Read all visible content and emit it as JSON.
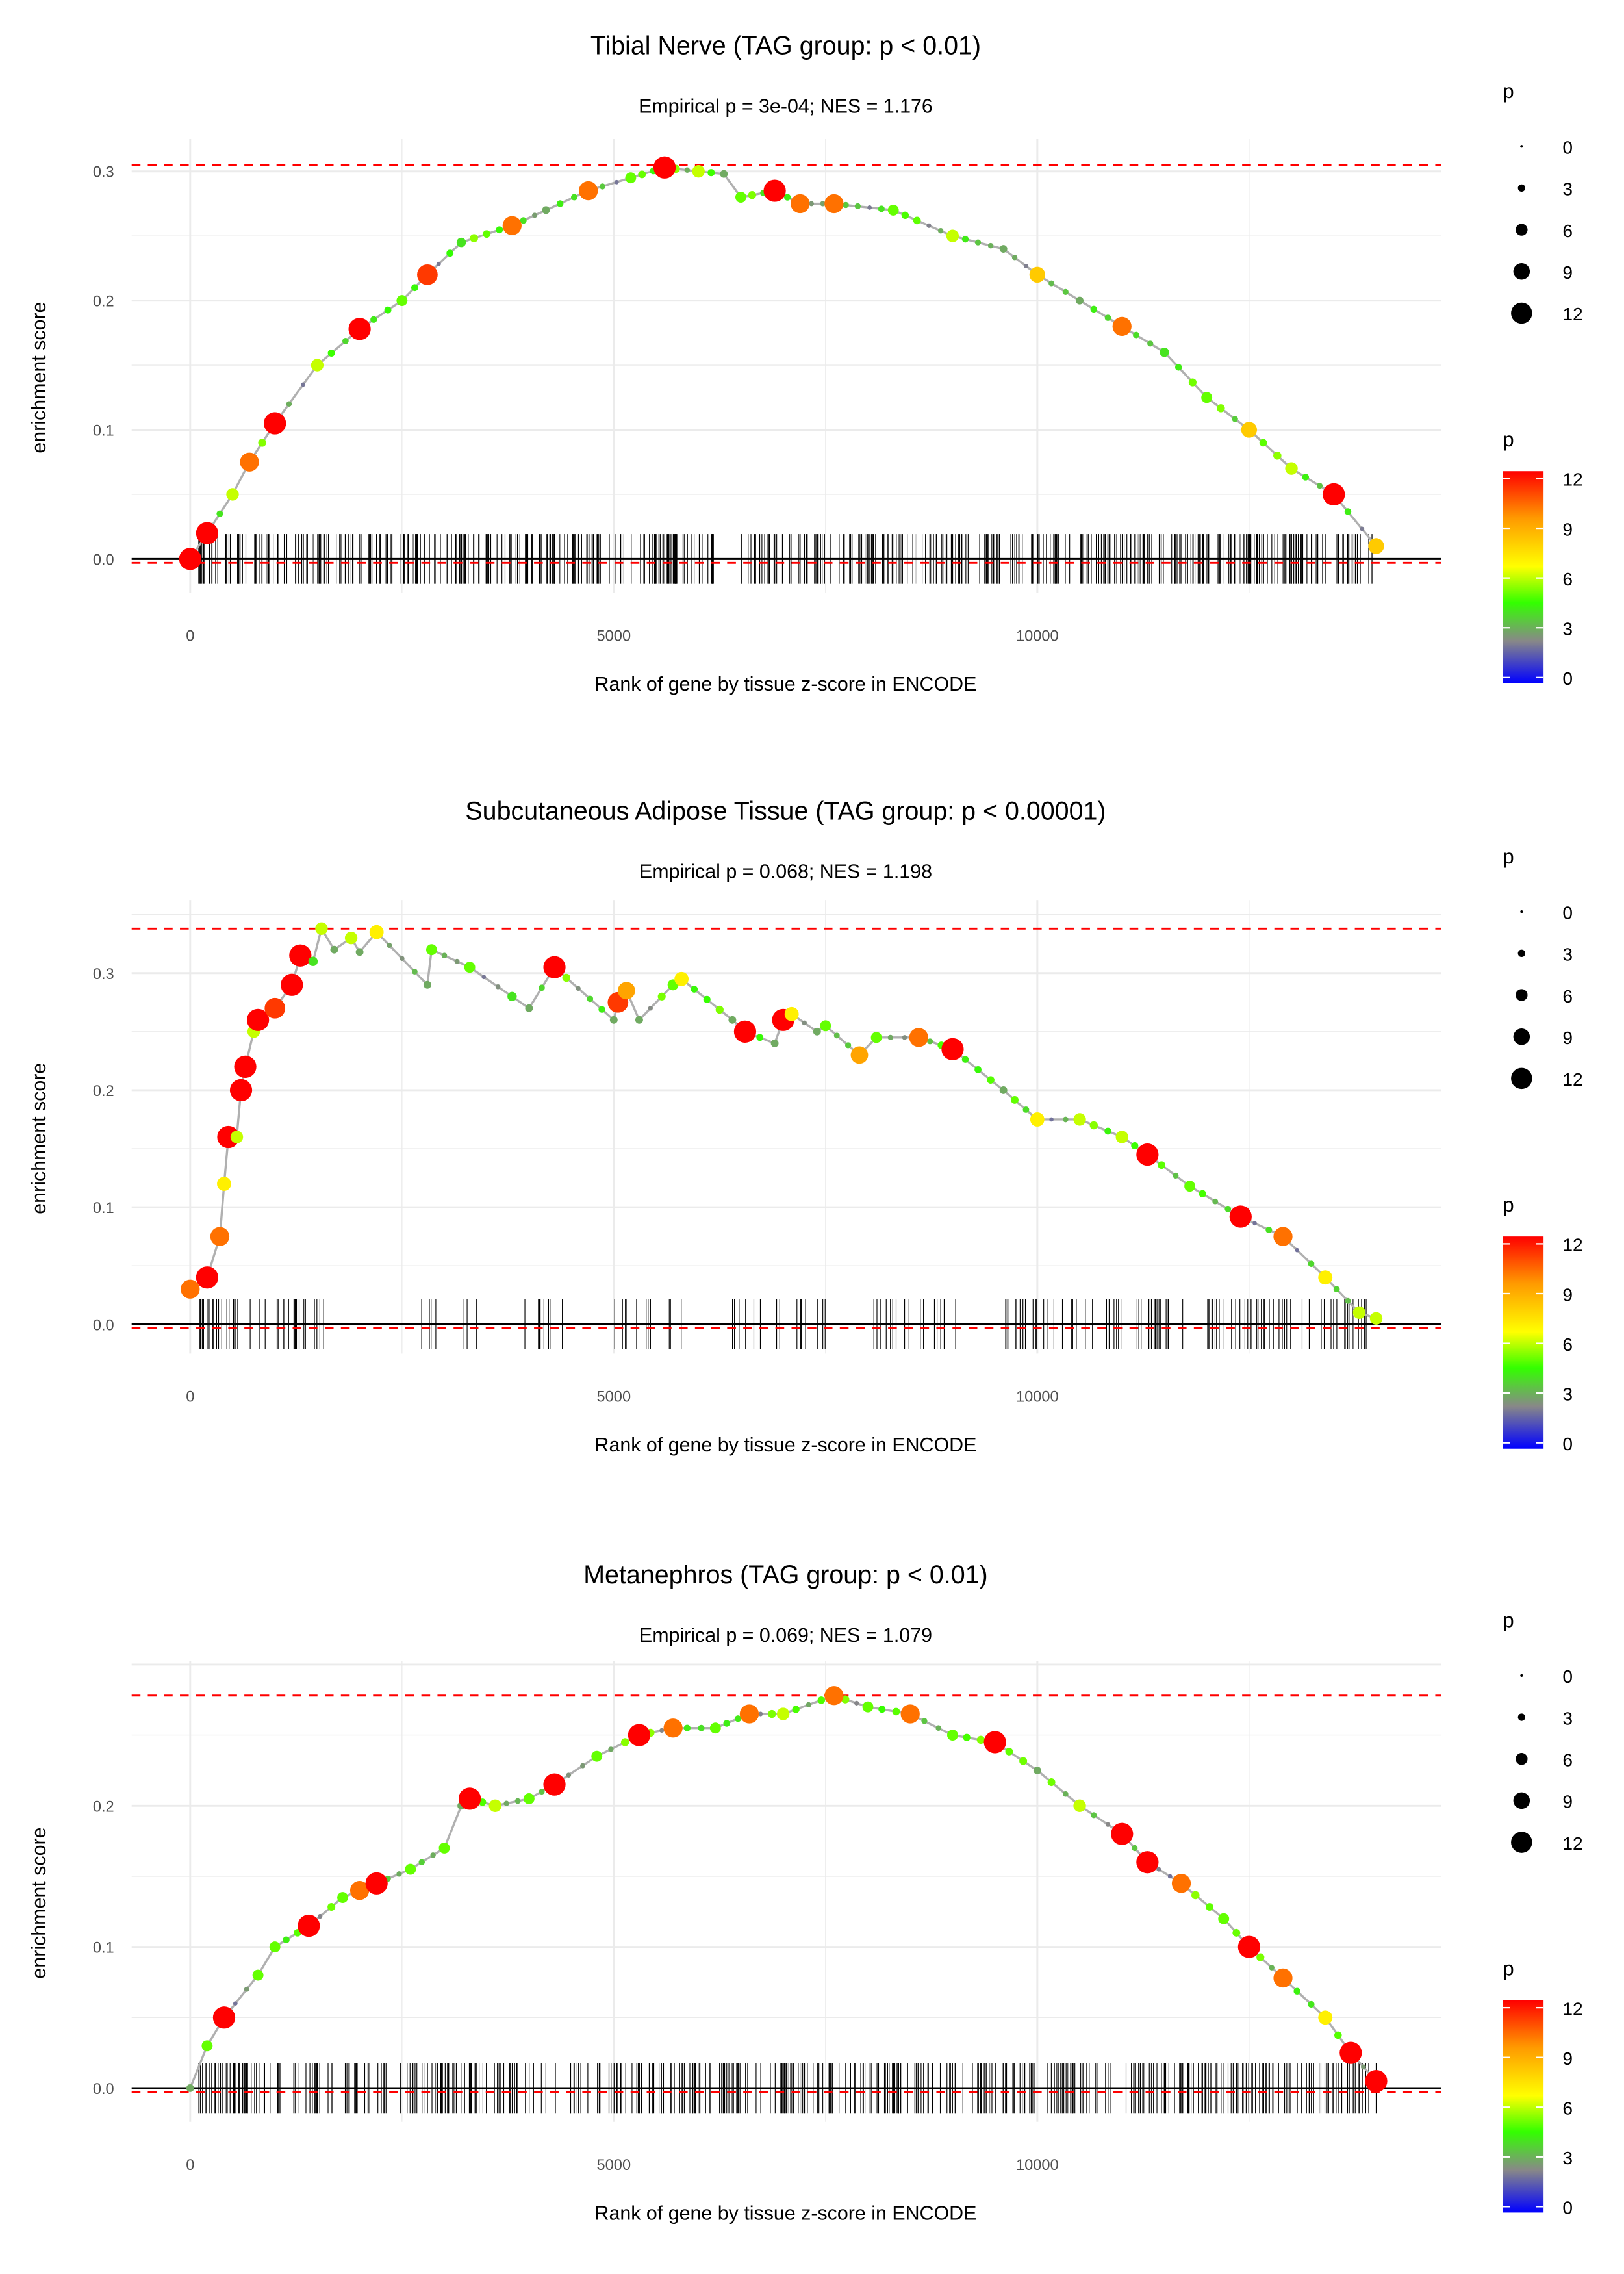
{
  "colors": {
    "dashed": "#ff0000",
    "curve": "#b0b0b0",
    "grid": "#ebebeb",
    "scale": [
      "#0000ff",
      "#888888",
      "#33ff00",
      "#ffff00",
      "#ff9900",
      "#ff0000"
    ]
  },
  "legend": {
    "size_title": "p",
    "size_labels": [
      "0",
      "3",
      "6",
      "9",
      "12"
    ],
    "color_title": "p",
    "color_labels": [
      "12",
      "9",
      "6",
      "3",
      "0"
    ]
  },
  "chart_data": [
    {
      "type": "line",
      "title": "Tibial Nerve (TAG group: p < 0.01)",
      "subtitle": "Empirical p = 3e-04; NES = 1.176",
      "xlabel": "Rank of gene by tissue z-score in ENCODE",
      "ylabel": "enrichment score",
      "xticks": [
        "0",
        "5000",
        "10000"
      ],
      "yticks": [
        "0.0",
        "0.1",
        "0.2",
        "0.3"
      ],
      "xlim": [
        -1500,
        14800
      ],
      "max_es": 0.305,
      "min_es": -0.003,
      "points": [
        [
          0,
          0,
          12
        ],
        [
          200,
          0.02,
          12
        ],
        [
          500,
          0.05,
          6
        ],
        [
          700,
          0.075,
          10
        ],
        [
          1000,
          0.105,
          12
        ],
        [
          1500,
          0.15,
          6
        ],
        [
          2000,
          0.178,
          12
        ],
        [
          2500,
          0.2,
          5
        ],
        [
          2800,
          0.22,
          11
        ],
        [
          3200,
          0.245,
          4
        ],
        [
          3800,
          0.258,
          10
        ],
        [
          4200,
          0.27,
          3
        ],
        [
          4700,
          0.285,
          10
        ],
        [
          5200,
          0.295,
          5
        ],
        [
          5600,
          0.303,
          12
        ],
        [
          6000,
          0.3,
          6
        ],
        [
          6300,
          0.298,
          3
        ],
        [
          6500,
          0.28,
          5
        ],
        [
          6900,
          0.285,
          12
        ],
        [
          7200,
          0.275,
          10
        ],
        [
          7600,
          0.275,
          10
        ],
        [
          8300,
          0.27,
          5
        ],
        [
          9000,
          0.25,
          6
        ],
        [
          9600,
          0.24,
          3
        ],
        [
          10000,
          0.22,
          8
        ],
        [
          10500,
          0.2,
          3
        ],
        [
          11000,
          0.18,
          10
        ],
        [
          11500,
          0.16,
          4
        ],
        [
          12000,
          0.125,
          5
        ],
        [
          12500,
          0.1,
          8
        ],
        [
          13000,
          0.07,
          6
        ],
        [
          13500,
          0.05,
          12
        ],
        [
          14000,
          0.01,
          8
        ]
      ],
      "hit_segments": [
        [
          100,
          6200,
          260
        ],
        [
          6500,
          14000,
          300
        ]
      ]
    },
    {
      "type": "line",
      "title": "Subcutaneous Adipose Tissue (TAG group: p < 0.00001)",
      "subtitle": "Empirical p = 0.068; NES = 1.198",
      "xlabel": "Rank of gene by tissue z-score in ENCODE",
      "ylabel": "enrichment score",
      "xticks": [
        "0",
        "5000",
        "10000"
      ],
      "yticks": [
        "0.0",
        "0.1",
        "0.2",
        "0.3"
      ],
      "xlim": [
        -1500,
        14800
      ],
      "max_es": 0.338,
      "min_es": -0.003,
      "points": [
        [
          0,
          0.03,
          10
        ],
        [
          200,
          0.04,
          12
        ],
        [
          350,
          0.075,
          10
        ],
        [
          400,
          0.12,
          7
        ],
        [
          450,
          0.16,
          12
        ],
        [
          550,
          0.16,
          6
        ],
        [
          600,
          0.2,
          12
        ],
        [
          650,
          0.22,
          12
        ],
        [
          750,
          0.25,
          6
        ],
        [
          800,
          0.26,
          12
        ],
        [
          1000,
          0.27,
          11
        ],
        [
          1200,
          0.29,
          12
        ],
        [
          1300,
          0.315,
          12
        ],
        [
          1450,
          0.31,
          4
        ],
        [
          1550,
          0.338,
          6
        ],
        [
          1700,
          0.32,
          3
        ],
        [
          1900,
          0.33,
          6
        ],
        [
          2000,
          0.318,
          3
        ],
        [
          2200,
          0.335,
          7
        ],
        [
          2800,
          0.29,
          3
        ],
        [
          2850,
          0.32,
          5
        ],
        [
          3300,
          0.305,
          5
        ],
        [
          3800,
          0.28,
          4
        ],
        [
          4000,
          0.27,
          3
        ],
        [
          4300,
          0.305,
          12
        ],
        [
          5000,
          0.26,
          3
        ],
        [
          5050,
          0.275,
          11
        ],
        [
          5150,
          0.285,
          9
        ],
        [
          5300,
          0.26,
          3
        ],
        [
          5700,
          0.29,
          5
        ],
        [
          5800,
          0.295,
          7
        ],
        [
          6400,
          0.26,
          3
        ],
        [
          6550,
          0.25,
          12
        ],
        [
          6900,
          0.24,
          3
        ],
        [
          7000,
          0.26,
          12
        ],
        [
          7100,
          0.265,
          7
        ],
        [
          7400,
          0.25,
          3
        ],
        [
          7500,
          0.255,
          5
        ],
        [
          7900,
          0.23,
          9
        ],
        [
          8100,
          0.245,
          5
        ],
        [
          8600,
          0.245,
          10
        ],
        [
          9000,
          0.235,
          12
        ],
        [
          9600,
          0.2,
          3
        ],
        [
          10000,
          0.175,
          7
        ],
        [
          10500,
          0.175,
          6
        ],
        [
          11000,
          0.16,
          6
        ],
        [
          11300,
          0.145,
          12
        ],
        [
          11800,
          0.118,
          5
        ],
        [
          12400,
          0.092,
          12
        ],
        [
          12900,
          0.075,
          10
        ],
        [
          13400,
          0.04,
          7
        ],
        [
          13800,
          0.01,
          6
        ],
        [
          14000,
          0.005,
          6
        ]
      ],
      "hit_segments": [
        [
          100,
          1600,
          40
        ],
        [
          2700,
          2900,
          4
        ],
        [
          3200,
          3400,
          3
        ],
        [
          3900,
          4400,
          8
        ],
        [
          5000,
          5800,
          12
        ],
        [
          6400,
          7600,
          18
        ],
        [
          8000,
          9200,
          18
        ],
        [
          9600,
          14000,
          90
        ]
      ]
    },
    {
      "type": "line",
      "title": "Metanephros (TAG group: p < 0.01)",
      "subtitle": "Empirical p = 0.069; NES = 1.079",
      "xlabel": "Rank of gene by tissue z-score in ENCODE",
      "ylabel": "enrichment score",
      "xticks": [
        "0",
        "5000",
        "10000"
      ],
      "yticks": [
        "0.0",
        "0.1",
        "0.2"
      ],
      "xlim": [
        -1500,
        14800
      ],
      "max_es": 0.278,
      "min_es": -0.003,
      "points": [
        [
          0,
          0,
          3
        ],
        [
          200,
          0.03,
          5
        ],
        [
          400,
          0.05,
          12
        ],
        [
          800,
          0.08,
          5
        ],
        [
          1000,
          0.1,
          5
        ],
        [
          1400,
          0.115,
          12
        ],
        [
          1800,
          0.135,
          5
        ],
        [
          2000,
          0.14,
          10
        ],
        [
          2200,
          0.145,
          12
        ],
        [
          2600,
          0.155,
          5
        ],
        [
          3000,
          0.17,
          5
        ],
        [
          3200,
          0.2,
          3
        ],
        [
          3300,
          0.205,
          12
        ],
        [
          3600,
          0.2,
          6
        ],
        [
          4000,
          0.205,
          5
        ],
        [
          4300,
          0.215,
          12
        ],
        [
          4800,
          0.235,
          5
        ],
        [
          5300,
          0.25,
          12
        ],
        [
          5700,
          0.255,
          10
        ],
        [
          6200,
          0.255,
          5
        ],
        [
          6600,
          0.265,
          10
        ],
        [
          7000,
          0.265,
          6
        ],
        [
          7600,
          0.278,
          10
        ],
        [
          8000,
          0.27,
          5
        ],
        [
          8500,
          0.265,
          10
        ],
        [
          9000,
          0.25,
          5
        ],
        [
          9500,
          0.245,
          12
        ],
        [
          10000,
          0.225,
          3
        ],
        [
          10500,
          0.2,
          6
        ],
        [
          11000,
          0.18,
          12
        ],
        [
          11300,
          0.16,
          12
        ],
        [
          11700,
          0.145,
          10
        ],
        [
          12200,
          0.12,
          5
        ],
        [
          12500,
          0.1,
          12
        ],
        [
          12900,
          0.078,
          10
        ],
        [
          13400,
          0.05,
          7
        ],
        [
          13700,
          0.025,
          12
        ],
        [
          14000,
          0.005,
          12
        ]
      ],
      "hit_segments": [
        [
          100,
          14000,
          480
        ]
      ]
    }
  ]
}
